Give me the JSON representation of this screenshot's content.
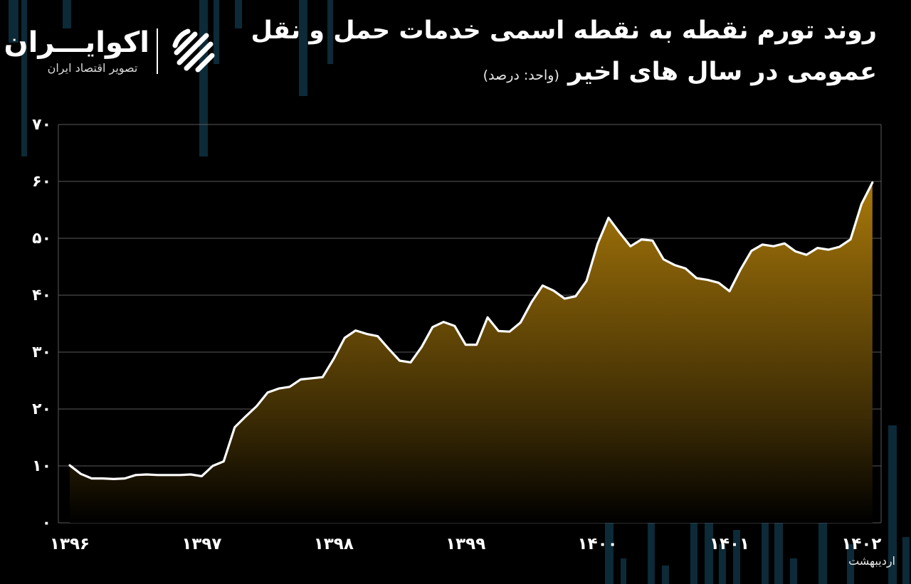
{
  "header": {
    "title_line1": "روند تورم نقطه به نقطه اسمی خدمات حمل و نقل",
    "title_line2": "عمومی در سال های اخیر",
    "unit": "(واحد: درصد)"
  },
  "logo": {
    "name": "اکوایـــران",
    "tagline": "تصویر اقتصاد ایران",
    "icon": "ecoiran-logo-icon"
  },
  "note": "اردیبهشت",
  "colors": {
    "background": "#000000",
    "line": "#ffffff",
    "fill_top": "#a8780a",
    "grid": "#5a5a5a",
    "bg_bars": "#0c2a38"
  },
  "chart_data": {
    "type": "area",
    "xlabel": "",
    "ylabel": "",
    "ylim": [
      0,
      70
    ],
    "yticks": [
      0,
      10,
      20,
      30,
      40,
      50,
      60,
      70
    ],
    "ytick_labels": [
      "۰",
      "۱۰",
      "۲۰",
      "۳۰",
      "۴۰",
      "۵۰",
      "۶۰",
      "۷۰"
    ],
    "x_tick_labels": [
      "۱۳۹۶",
      "۱۳۹۷",
      "۱۳۹۸",
      "۱۳۹۹",
      "۱۴۰۰",
      "۱۴۰۱",
      "۱۴۰۲"
    ],
    "months_per_year": 12,
    "last_point_label": "اردیبهشت",
    "grid": true,
    "series": [
      {
        "values": [
          10.1,
          8.6,
          7.8,
          7.8,
          7.7,
          7.8,
          8.4,
          8.5,
          8.4,
          8.4,
          8.4,
          8.5,
          8.2,
          10.0,
          10.8,
          16.8,
          18.7,
          20.5,
          22.9,
          23.6,
          23.9,
          25.2,
          25.4,
          25.6,
          28.8,
          32.5,
          33.8,
          33.2,
          32.8,
          30.6,
          28.5,
          28.2,
          30.9,
          34.4,
          35.3,
          34.6,
          31.3,
          31.3,
          36.1,
          33.7,
          33.6,
          35.2,
          38.8,
          41.7,
          40.8,
          39.4,
          39.8,
          42.5,
          49.0,
          53.6,
          51.0,
          48.6,
          49.8,
          49.6,
          46.3,
          45.3,
          44.7,
          43.0,
          42.7,
          42.2,
          40.7,
          44.5,
          47.8,
          48.9,
          48.6,
          49.1,
          47.7,
          47.1,
          48.3,
          48.0,
          48.5,
          49.8,
          56.0,
          59.8
        ]
      }
    ]
  }
}
